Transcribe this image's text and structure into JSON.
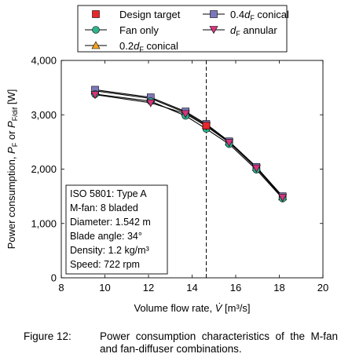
{
  "chart_data": {
    "type": "line",
    "xlabel": "Volume flow rate, V̇ [m³/s]",
    "ylabel": "Power consumption, P_F or P_F/dif [W]",
    "xlim": [
      8,
      20
    ],
    "ylim": [
      0,
      4000
    ],
    "xticks": [
      "8",
      "10",
      "12",
      "14",
      "16",
      "18",
      "20"
    ],
    "yticks": [
      "0",
      "1,000",
      "2,000",
      "3,000",
      "4,000"
    ],
    "design_flow_rate": 14.65,
    "legend_position": "top, outside",
    "series": [
      {
        "name": "Design target",
        "marker": "square",
        "color": "#e8262b",
        "x": [
          14.65
        ],
        "y": [
          2800
        ]
      },
      {
        "name": "Fan only",
        "marker": "circle",
        "color": "#2fb38c",
        "x": [
          9.55,
          12.1,
          13.7,
          14.65,
          15.7,
          16.95,
          18.15
        ],
        "y": [
          3380,
          3250,
          2980,
          2740,
          2460,
          1990,
          1460
        ]
      },
      {
        "name": "0.2dF conical",
        "marker": "triangle",
        "color": "#f5a21d",
        "x": [
          9.55,
          12.1,
          13.7,
          14.65,
          15.7,
          16.95,
          18.15
        ],
        "y": [
          3440,
          3300,
          3040,
          2810,
          2500,
          2030,
          1490
        ]
      },
      {
        "name": "0.4dF conical",
        "marker": "square",
        "color": "#7b78ba",
        "x": [
          9.55,
          12.1,
          13.7,
          14.65,
          15.7,
          16.95,
          18.15
        ],
        "y": [
          3460,
          3320,
          3060,
          2830,
          2510,
          2040,
          1500
        ]
      },
      {
        "name": "dF annular",
        "marker": "triangle-down",
        "color": "#d6357d",
        "x": [
          9.55,
          12.1,
          13.7,
          14.65,
          15.7,
          16.95,
          18.15
        ],
        "y": [
          3370,
          3220,
          3020,
          2790,
          2490,
          2020,
          1480
        ]
      }
    ],
    "annotation": [
      "ISO 5801: Type A",
      "M-fan: 8 bladed",
      "Diameter: 1.542 m",
      "Blade angle: 34°",
      "Density: 1.2 kg/m³",
      "Speed: 722 rpm"
    ]
  },
  "legend": {
    "design_target": "Design target",
    "fan_only": "Fan only",
    "c02_prefix": "0.2",
    "c02_suffix": " conical",
    "c04_prefix": "0.4",
    "c04_suffix": " conical",
    "annular_suffix": " annular",
    "dF_symbol": "d",
    "dF_sub": "F"
  },
  "axis": {
    "xlabel_text": "Volume flow rate, ",
    "xlabel_var": "V̇",
    "xlabel_unit": " [m³/s]",
    "ylabel_text": "Power consumption, ",
    "ylabel_var1": "P",
    "ylabel_sub1": "F",
    "ylabel_or": " or ",
    "ylabel_var2": "P",
    "ylabel_sub2": "F/dif",
    "ylabel_unit": " [W]"
  },
  "caption": {
    "label": "Figure 12:",
    "text": "Power consumption characteristics of the M-fan and fan-diffuser combinations."
  }
}
